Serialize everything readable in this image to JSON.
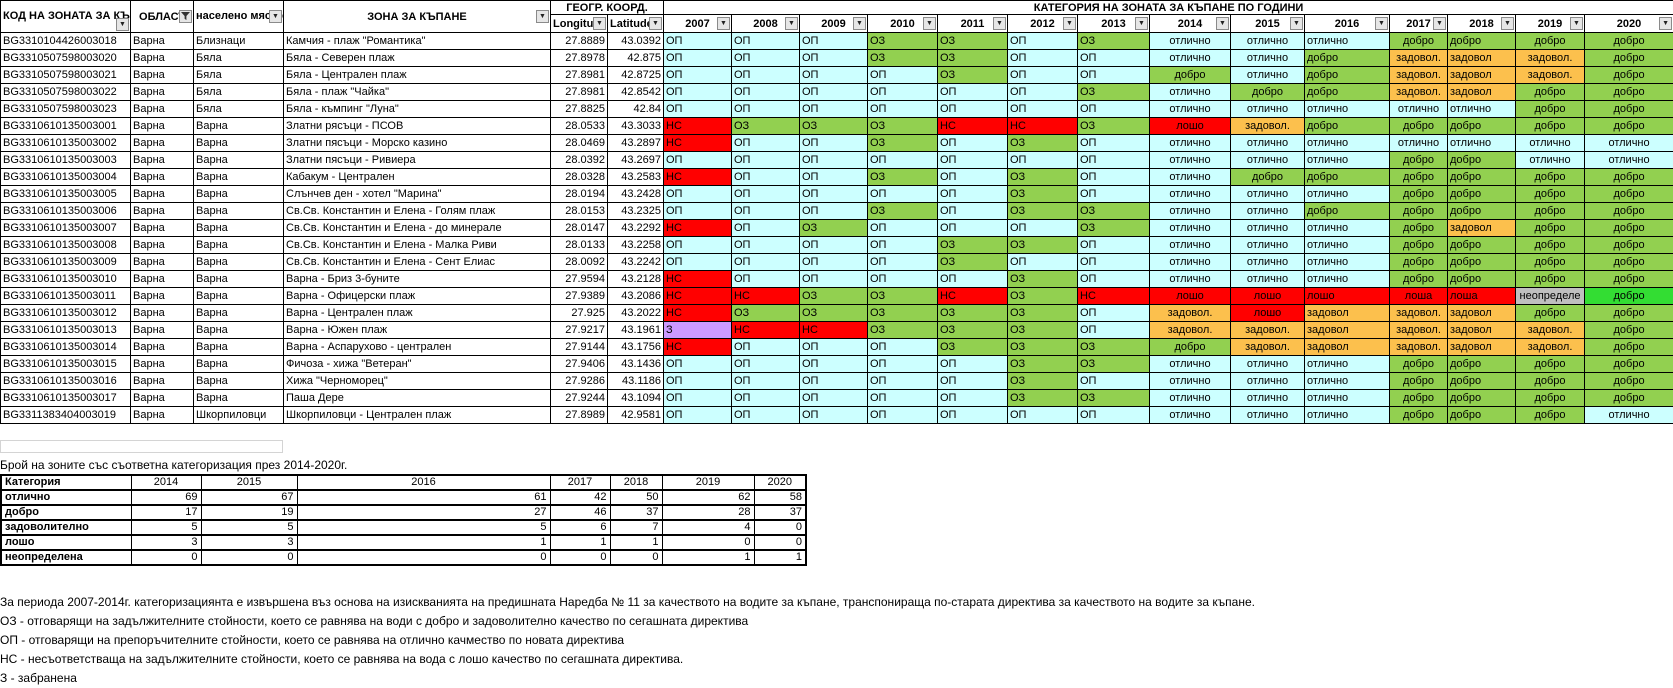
{
  "icons": {
    "dropdown_arrow": "▼",
    "filter_funnel": "funnel-icon"
  },
  "category_colors": {
    "ОП": "#CCFFFF",
    "ОЗ": "#92D050",
    "НС": "#FF0000",
    "З": "#CC99FF",
    "отлично": "#CCFFFF",
    "добро": "#92D050",
    "задовол.": "#FCC04D",
    "задовол": "#FCC04D",
    "лошо": "#FF0000",
    "лоша": "#FF0000",
    "неопределе": "#BFBFBF"
  },
  "main_table": {
    "headers": {
      "code": "КОД НА ЗОНАТА ЗА КЪПАНЕ",
      "region": "ОБЛАСТ",
      "settlement": "населено място",
      "zone": "ЗОНА ЗА КЪПАНЕ",
      "geo_group": "ГЕОГР. КООРД.",
      "longitude": "Longitude",
      "latitude": "Latitude",
      "category_group": "КАТЕГОРИЯ НА ЗОНАТА ЗА КЪПАНЕ ПО ГОДИНИ",
      "years": [
        "2007",
        "2008",
        "2009",
        "2010",
        "2011",
        "2012",
        "2013",
        "2014",
        "2015",
        "2016",
        "2017",
        "2018",
        "2019",
        "2020"
      ]
    },
    "color_overrides": [
      {
        "row": 15,
        "col": 13,
        "color": "#33DD33"
      }
    ],
    "rows": [
      {
        "code": "BG3310104426003018",
        "region": "Варна",
        "settlement": "Близнаци",
        "zone": "Камчия - плаж \"Романтика\"",
        "lon": "27.8889",
        "lat": "43.0392",
        "categories": [
          "ОП",
          "ОП",
          "ОП",
          "ОЗ",
          "ОЗ",
          "ОП",
          "ОЗ",
          "отлично",
          "отлично",
          "отлично",
          "добро",
          "добро",
          "добро",
          "добро"
        ]
      },
      {
        "code": "BG3310507598003020",
        "region": "Варна",
        "settlement": "Бяла",
        "zone": "Бяла - Северен плаж",
        "lon": "27.8978",
        "lat": "42.875",
        "categories": [
          "ОП",
          "ОП",
          "ОП",
          "ОЗ",
          "ОЗ",
          "ОП",
          "ОП",
          "отлично",
          "отлично",
          "добро",
          "задовол.",
          "задовол",
          "задовол.",
          "добро"
        ]
      },
      {
        "code": "BG3310507598003021",
        "region": "Варна",
        "settlement": "Бяла",
        "zone": "Бяла - Централен плаж",
        "lon": "27.8981",
        "lat": "42.8725",
        "categories": [
          "ОП",
          "ОП",
          "ОП",
          "ОП",
          "ОЗ",
          "ОП",
          "ОП",
          "добро",
          "отлично",
          "добро",
          "задовол.",
          "задовол",
          "задовол.",
          "добро"
        ]
      },
      {
        "code": "BG3310507598003022",
        "region": "Варна",
        "settlement": "Бяла",
        "zone": "Бяла - плаж \"Чайка\"",
        "lon": "27.8981",
        "lat": "42.8542",
        "categories": [
          "ОП",
          "ОП",
          "ОП",
          "ОП",
          "ОП",
          "ОП",
          "ОЗ",
          "отлично",
          "добро",
          "добро",
          "задовол.",
          "задовол",
          "добро",
          "добро"
        ]
      },
      {
        "code": "BG3310507598003023",
        "region": "Варна",
        "settlement": "Бяла",
        "zone": "Бяла - къмпинг \"Луна\"",
        "lon": "27.8825",
        "lat": "42.84",
        "categories": [
          "ОП",
          "ОП",
          "ОП",
          "ОП",
          "ОП",
          "ОП",
          "ОП",
          "отлично",
          "отлично",
          "отлично",
          "отлично",
          "отлично",
          "добро",
          "добро"
        ]
      },
      {
        "code": "BG3310610135003001",
        "region": "Варна",
        "settlement": "Варна",
        "zone": "Златни рясъци - ПСОВ",
        "lon": "28.0533",
        "lat": "43.3033",
        "categories": [
          "НС",
          "ОЗ",
          "ОЗ",
          "ОЗ",
          "НС",
          "НС",
          "ОЗ",
          "лошо",
          "задовол.",
          "добро",
          "добро",
          "добро",
          "добро",
          "добро"
        ]
      },
      {
        "code": "BG3310610135003002",
        "region": "Варна",
        "settlement": "Варна",
        "zone": "Златни пясъци - Морско казино",
        "lon": "28.0469",
        "lat": "43.2897",
        "categories": [
          "НС",
          "ОП",
          "ОП",
          "ОЗ",
          "ОП",
          "ОЗ",
          "ОП",
          "отлично",
          "отлично",
          "отлично",
          "отлично",
          "отлично",
          "отлично",
          "отлично"
        ]
      },
      {
        "code": "BG3310610135003003",
        "region": "Варна",
        "settlement": "Варна",
        "zone": "Златни пясъци - Ривиера",
        "lon": "28.0392",
        "lat": "43.2697",
        "categories": [
          "ОП",
          "ОП",
          "ОП",
          "ОП",
          "ОП",
          "ОП",
          "ОП",
          "отлично",
          "отлично",
          "отлично",
          "добро",
          "добро",
          "отлично",
          "отлично"
        ]
      },
      {
        "code": "BG3310610135003004",
        "region": "Варна",
        "settlement": "Варна",
        "zone": "Кабакум - Централен",
        "lon": "28.0328",
        "lat": "43.2583",
        "categories": [
          "НС",
          "ОП",
          "ОП",
          "ОЗ",
          "ОП",
          "ОЗ",
          "ОП",
          "отлично",
          "добро",
          "добро",
          "добро",
          "добро",
          "добро",
          "добро"
        ]
      },
      {
        "code": "BG3310610135003005",
        "region": "Варна",
        "settlement": "Варна",
        "zone": "Слънчев ден - хотел \"Марина\"",
        "lon": "28.0194",
        "lat": "43.2428",
        "categories": [
          "ОП",
          "ОП",
          "ОП",
          "ОП",
          "ОП",
          "ОЗ",
          "ОП",
          "отлично",
          "отлично",
          "отлично",
          "добро",
          "добро",
          "добро",
          "добро"
        ]
      },
      {
        "code": "BG3310610135003006",
        "region": "Варна",
        "settlement": "Варна",
        "zone": "Св.Св. Константин и Елена - Голям плаж",
        "lon": "28.0153",
        "lat": "43.2325",
        "categories": [
          "ОП",
          "ОП",
          "ОП",
          "ОЗ",
          "ОП",
          "ОЗ",
          "ОЗ",
          "отлично",
          "отлично",
          "добро",
          "добро",
          "добро",
          "добро",
          "добро"
        ]
      },
      {
        "code": "BG3310610135003007",
        "region": "Варна",
        "settlement": "Варна",
        "zone": "Св.Св. Константин и Елена - до минерале",
        "lon": "28.0147",
        "lat": "43.2292",
        "categories": [
          "НС",
          "ОП",
          "ОЗ",
          "ОП",
          "ОП",
          "ОП",
          "ОЗ",
          "отлично",
          "отлично",
          "отлично",
          "добро",
          "задовол",
          "добро",
          "добро"
        ]
      },
      {
        "code": "BG3310610135003008",
        "region": "Варна",
        "settlement": "Варна",
        "zone": "Св.Св. Константин и Елена - Малка Риви",
        "lon": "28.0133",
        "lat": "43.2258",
        "categories": [
          "ОП",
          "ОП",
          "ОП",
          "ОП",
          "ОЗ",
          "ОЗ",
          "ОП",
          "отлично",
          "отлично",
          "отлично",
          "добро",
          "добро",
          "добро",
          "добро"
        ]
      },
      {
        "code": "BG3310610135003009",
        "region": "Варна",
        "settlement": "Варна",
        "zone": "Св.Св. Константин и Елена - Сент Елиас",
        "lon": "28.0092",
        "lat": "43.2242",
        "categories": [
          "ОП",
          "ОП",
          "ОП",
          "ОП",
          "ОЗ",
          "ОП",
          "ОП",
          "отлично",
          "отлично",
          "отлично",
          "добро",
          "добро",
          "добро",
          "добро"
        ]
      },
      {
        "code": "BG3310610135003010",
        "region": "Варна",
        "settlement": "Варна",
        "zone": "Варна - Бриз 3-буните",
        "lon": "27.9594",
        "lat": "43.2128",
        "categories": [
          "НС",
          "ОП",
          "ОП",
          "ОП",
          "ОП",
          "ОЗ",
          "ОП",
          "отлично",
          "отлично",
          "отлично",
          "добро",
          "добро",
          "добро",
          "добро"
        ]
      },
      {
        "code": "BG3310610135003011",
        "region": "Варна",
        "settlement": "Варна",
        "zone": "Варна - Офицерски плаж",
        "lon": "27.9389",
        "lat": "43.2086",
        "categories": [
          "НС",
          "НС",
          "ОЗ",
          "ОЗ",
          "НС",
          "ОЗ",
          "НС",
          "лошо",
          "лошо",
          "лошо",
          "лоша",
          "лоша",
          "неопределе",
          "добро"
        ]
      },
      {
        "code": "BG3310610135003012",
        "region": "Варна",
        "settlement": "Варна",
        "zone": "Варна - Централен плаж",
        "lon": "27.925",
        "lat": "43.2022",
        "categories": [
          "НС",
          "ОЗ",
          "ОЗ",
          "ОЗ",
          "ОЗ",
          "ОЗ",
          "ОП",
          "задовол.",
          "лошо",
          "задовол",
          "задовол.",
          "задовол",
          "добро",
          "добро"
        ]
      },
      {
        "code": "BG3310610135003013",
        "region": "Варна",
        "settlement": "Варна",
        "zone": "Варна - Южен плаж",
        "lon": "27.9217",
        "lat": "43.1961",
        "categories": [
          "З",
          "НС",
          "НС",
          "ОЗ",
          "ОЗ",
          "ОЗ",
          "ОП",
          "задовол.",
          "задовол.",
          "задовол",
          "задовол.",
          "задовол",
          "задовол.",
          "добро"
        ]
      },
      {
        "code": "BG3310610135003014",
        "region": "Варна",
        "settlement": "Варна",
        "zone": "Варна - Аспарухово - централен",
        "lon": "27.9144",
        "lat": "43.1756",
        "categories": [
          "НС",
          "ОП",
          "ОП",
          "ОП",
          "ОЗ",
          "ОЗ",
          "ОЗ",
          "добро",
          "задовол.",
          "задовол",
          "задовол.",
          "задовол",
          "задовол.",
          "добро"
        ]
      },
      {
        "code": "BG3310610135003015",
        "region": "Варна",
        "settlement": "Варна",
        "zone": "Фичоза - хижа \"Ветеран\"",
        "lon": "27.9406",
        "lat": "43.1436",
        "categories": [
          "ОП",
          "ОП",
          "ОП",
          "ОП",
          "ОП",
          "ОЗ",
          "ОЗ",
          "отлично",
          "отлично",
          "отлично",
          "добро",
          "добро",
          "добро",
          "добро"
        ]
      },
      {
        "code": "BG3310610135003016",
        "region": "Варна",
        "settlement": "Варна",
        "zone": "Хижа \"Черноморец\"",
        "lon": "27.9286",
        "lat": "43.1186",
        "categories": [
          "ОП",
          "ОП",
          "ОП",
          "ОП",
          "ОП",
          "ОЗ",
          "ОП",
          "отлично",
          "отлично",
          "отлично",
          "добро",
          "добро",
          "добро",
          "добро"
        ]
      },
      {
        "code": "BG3310610135003017",
        "region": "Варна",
        "settlement": "Варна",
        "zone": "Паша Дере",
        "lon": "27.9244",
        "lat": "43.1094",
        "categories": [
          "ОП",
          "ОП",
          "ОП",
          "ОП",
          "ОП",
          "ОЗ",
          "ОЗ",
          "отлично",
          "отлично",
          "отлично",
          "добро",
          "добро",
          "добро",
          "добро"
        ]
      },
      {
        "code": "BG3311383404003019",
        "region": "Варна",
        "settlement": "Шкорпиловци",
        "zone": "Шкорпиловци - Централен плаж",
        "lon": "27.8989",
        "lat": "42.9581",
        "categories": [
          "ОП",
          "ОП",
          "ОП",
          "ОП",
          "ОП",
          "ОП",
          "ОП",
          "отлично",
          "отлично",
          "отлично",
          "добро",
          "добро",
          "добро",
          "отлично"
        ]
      }
    ]
  },
  "summary": {
    "title": "Брой на зоните със съответна категоризация през 2014-2020г.",
    "col_header": "Категория",
    "years": [
      "2014",
      "2015",
      "2016",
      "2017",
      "2018",
      "2019",
      "2020"
    ],
    "rows": [
      {
        "label": "отлично",
        "values": [
          "69",
          "67",
          "61",
          "42",
          "50",
          "62",
          "58"
        ]
      },
      {
        "label": "добро",
        "values": [
          "17",
          "19",
          "27",
          "46",
          "37",
          "28",
          "37"
        ]
      },
      {
        "label": "задоволително",
        "values": [
          "5",
          "5",
          "5",
          "6",
          "7",
          "4",
          "0"
        ]
      },
      {
        "label": "лошо",
        "values": [
          "3",
          "3",
          "1",
          "1",
          "1",
          "0",
          "0"
        ]
      },
      {
        "label": "неопределена",
        "values": [
          "0",
          "0",
          "0",
          "0",
          "0",
          "1",
          "1"
        ]
      }
    ]
  },
  "notes": [
    "За периода 2007-2014г. категоризациянта е извършена въз основа на изискванията на предишната Наредба № 11 за качеството на водите за къпане, транспонираща по-старата директива за качеството на водите за къпане.",
    "ОЗ - отговарящи на задължителните стойности, което се равнява на води с добро и задоволително качество по сегашната директива",
    "ОП - отговарящи на препоръчителните стойности, което се равнява на отлично качмество по новата директива",
    "НС - несъответстваща на задължителните стойности, което се равнява на вода с лошо качество по сегашната директива.",
    "З - забранена"
  ]
}
